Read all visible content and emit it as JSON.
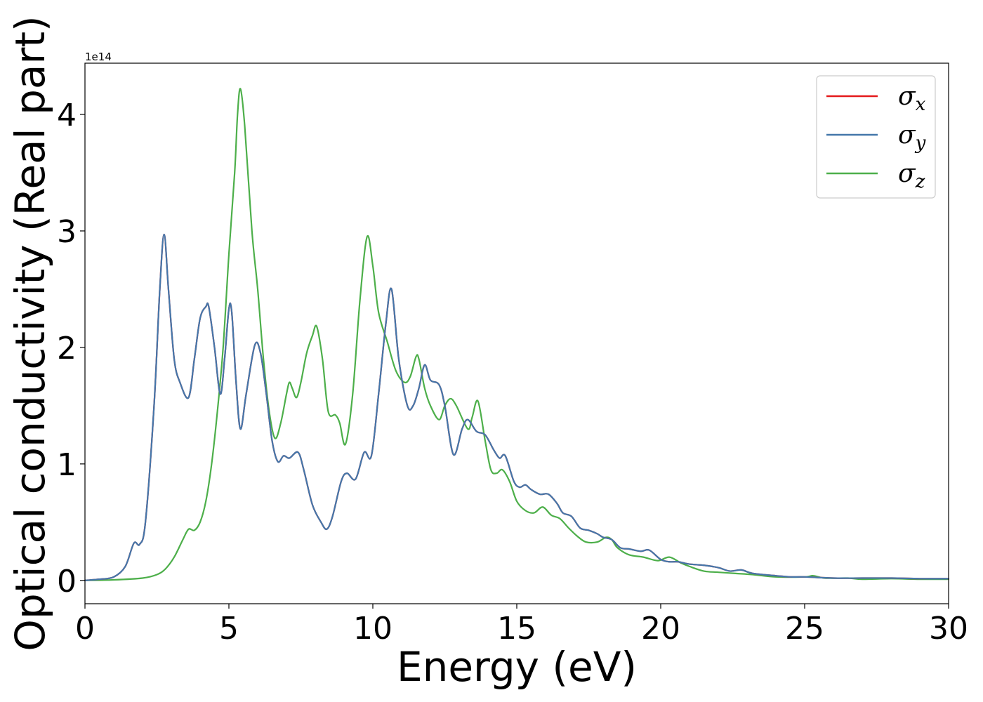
{
  "chart_data": {
    "type": "line",
    "xlabel": "Energy (eV)",
    "ylabel": "Optical conductivity (Real part)",
    "y_offset_label": "1e14",
    "xlim": [
      0,
      30
    ],
    "ylim": [
      -0.2,
      4.44
    ],
    "x_ticks": [
      0,
      5,
      10,
      15,
      20,
      25,
      30
    ],
    "y_ticks": [
      0,
      1,
      2,
      3,
      4
    ],
    "grid": false,
    "legend_position": "top-right",
    "series": [
      {
        "name": "σx",
        "symbol": "σ",
        "subscript": "x",
        "color": "#e41a1c",
        "points": [
          [
            0,
            0
          ],
          [
            0.5,
            0.01
          ],
          [
            1.0,
            0.03
          ],
          [
            1.4,
            0.12
          ],
          [
            1.7,
            0.32
          ],
          [
            1.9,
            0.31
          ],
          [
            2.1,
            0.5
          ],
          [
            2.4,
            1.5
          ],
          [
            2.6,
            2.5
          ],
          [
            2.75,
            2.97
          ],
          [
            2.9,
            2.5
          ],
          [
            3.1,
            1.9
          ],
          [
            3.3,
            1.7
          ],
          [
            3.6,
            1.57
          ],
          [
            3.8,
            1.9
          ],
          [
            4.0,
            2.25
          ],
          [
            4.2,
            2.35
          ],
          [
            4.3,
            2.35
          ],
          [
            4.5,
            2.0
          ],
          [
            4.7,
            1.6
          ],
          [
            4.85,
            1.9
          ],
          [
            5.0,
            2.33
          ],
          [
            5.1,
            2.3
          ],
          [
            5.25,
            1.7
          ],
          [
            5.4,
            1.3
          ],
          [
            5.6,
            1.6
          ],
          [
            5.9,
            2.02
          ],
          [
            6.1,
            1.95
          ],
          [
            6.3,
            1.6
          ],
          [
            6.5,
            1.2
          ],
          [
            6.7,
            1.02
          ],
          [
            6.9,
            1.07
          ],
          [
            7.1,
            1.05
          ],
          [
            7.4,
            1.1
          ],
          [
            7.6,
            0.95
          ],
          [
            7.9,
            0.65
          ],
          [
            8.2,
            0.5
          ],
          [
            8.4,
            0.44
          ],
          [
            8.6,
            0.55
          ],
          [
            8.9,
            0.85
          ],
          [
            9.1,
            0.92
          ],
          [
            9.4,
            0.87
          ],
          [
            9.7,
            1.1
          ],
          [
            9.95,
            1.07
          ],
          [
            10.2,
            1.6
          ],
          [
            10.45,
            2.2
          ],
          [
            10.65,
            2.5
          ],
          [
            10.9,
            1.9
          ],
          [
            11.2,
            1.5
          ],
          [
            11.4,
            1.5
          ],
          [
            11.6,
            1.65
          ],
          [
            11.8,
            1.85
          ],
          [
            12.0,
            1.72
          ],
          [
            12.3,
            1.68
          ],
          [
            12.5,
            1.5
          ],
          [
            12.8,
            1.08
          ],
          [
            13.1,
            1.3
          ],
          [
            13.3,
            1.38
          ],
          [
            13.6,
            1.28
          ],
          [
            13.9,
            1.25
          ],
          [
            14.2,
            1.12
          ],
          [
            14.4,
            1.05
          ],
          [
            14.6,
            1.07
          ],
          [
            14.9,
            0.85
          ],
          [
            15.1,
            0.8
          ],
          [
            15.3,
            0.82
          ],
          [
            15.5,
            0.78
          ],
          [
            15.8,
            0.74
          ],
          [
            16.1,
            0.74
          ],
          [
            16.4,
            0.66
          ],
          [
            16.6,
            0.58
          ],
          [
            16.9,
            0.55
          ],
          [
            17.2,
            0.45
          ],
          [
            17.5,
            0.43
          ],
          [
            17.8,
            0.4
          ],
          [
            18.0,
            0.37
          ],
          [
            18.3,
            0.35
          ],
          [
            18.6,
            0.28
          ],
          [
            18.9,
            0.27
          ],
          [
            19.3,
            0.25
          ],
          [
            19.6,
            0.26
          ],
          [
            20.0,
            0.18
          ],
          [
            20.3,
            0.16
          ],
          [
            20.6,
            0.16
          ],
          [
            21.0,
            0.14
          ],
          [
            21.5,
            0.13
          ],
          [
            22.0,
            0.11
          ],
          [
            22.4,
            0.08
          ],
          [
            22.8,
            0.09
          ],
          [
            23.2,
            0.06
          ],
          [
            24.0,
            0.04
          ],
          [
            24.5,
            0.03
          ],
          [
            25.0,
            0.03
          ],
          [
            26.0,
            0.02
          ],
          [
            27.0,
            0.02
          ],
          [
            28.0,
            0.02
          ],
          [
            29.0,
            0.015
          ],
          [
            30.0,
            0.015
          ]
        ]
      },
      {
        "name": "σy",
        "symbol": "σ",
        "subscript": "y",
        "color": "#4477aa",
        "points": [
          [
            0,
            0
          ],
          [
            0.5,
            0.01
          ],
          [
            1.0,
            0.03
          ],
          [
            1.4,
            0.12
          ],
          [
            1.7,
            0.32
          ],
          [
            1.9,
            0.31
          ],
          [
            2.1,
            0.5
          ],
          [
            2.4,
            1.5
          ],
          [
            2.6,
            2.5
          ],
          [
            2.75,
            2.97
          ],
          [
            2.9,
            2.5
          ],
          [
            3.1,
            1.9
          ],
          [
            3.3,
            1.7
          ],
          [
            3.6,
            1.57
          ],
          [
            3.8,
            1.9
          ],
          [
            4.0,
            2.25
          ],
          [
            4.2,
            2.35
          ],
          [
            4.3,
            2.35
          ],
          [
            4.5,
            2.0
          ],
          [
            4.7,
            1.6
          ],
          [
            4.85,
            1.9
          ],
          [
            5.0,
            2.33
          ],
          [
            5.1,
            2.3
          ],
          [
            5.25,
            1.7
          ],
          [
            5.4,
            1.3
          ],
          [
            5.6,
            1.6
          ],
          [
            5.9,
            2.02
          ],
          [
            6.1,
            1.95
          ],
          [
            6.3,
            1.6
          ],
          [
            6.5,
            1.2
          ],
          [
            6.7,
            1.02
          ],
          [
            6.9,
            1.07
          ],
          [
            7.1,
            1.05
          ],
          [
            7.4,
            1.1
          ],
          [
            7.6,
            0.95
          ],
          [
            7.9,
            0.65
          ],
          [
            8.2,
            0.5
          ],
          [
            8.4,
            0.44
          ],
          [
            8.6,
            0.55
          ],
          [
            8.9,
            0.85
          ],
          [
            9.1,
            0.92
          ],
          [
            9.4,
            0.87
          ],
          [
            9.7,
            1.1
          ],
          [
            9.95,
            1.07
          ],
          [
            10.2,
            1.6
          ],
          [
            10.45,
            2.2
          ],
          [
            10.65,
            2.5
          ],
          [
            10.9,
            1.9
          ],
          [
            11.2,
            1.5
          ],
          [
            11.4,
            1.5
          ],
          [
            11.6,
            1.65
          ],
          [
            11.8,
            1.85
          ],
          [
            12.0,
            1.72
          ],
          [
            12.3,
            1.68
          ],
          [
            12.5,
            1.5
          ],
          [
            12.8,
            1.08
          ],
          [
            13.1,
            1.3
          ],
          [
            13.3,
            1.38
          ],
          [
            13.6,
            1.28
          ],
          [
            13.9,
            1.25
          ],
          [
            14.2,
            1.12
          ],
          [
            14.4,
            1.05
          ],
          [
            14.6,
            1.07
          ],
          [
            14.9,
            0.85
          ],
          [
            15.1,
            0.8
          ],
          [
            15.3,
            0.82
          ],
          [
            15.5,
            0.78
          ],
          [
            15.8,
            0.74
          ],
          [
            16.1,
            0.74
          ],
          [
            16.4,
            0.66
          ],
          [
            16.6,
            0.58
          ],
          [
            16.9,
            0.55
          ],
          [
            17.2,
            0.45
          ],
          [
            17.5,
            0.43
          ],
          [
            17.8,
            0.4
          ],
          [
            18.0,
            0.37
          ],
          [
            18.3,
            0.35
          ],
          [
            18.6,
            0.28
          ],
          [
            18.9,
            0.27
          ],
          [
            19.3,
            0.25
          ],
          [
            19.6,
            0.26
          ],
          [
            20.0,
            0.18
          ],
          [
            20.3,
            0.16
          ],
          [
            20.6,
            0.16
          ],
          [
            21.0,
            0.14
          ],
          [
            21.5,
            0.13
          ],
          [
            22.0,
            0.11
          ],
          [
            22.4,
            0.08
          ],
          [
            22.8,
            0.09
          ],
          [
            23.2,
            0.06
          ],
          [
            24.0,
            0.04
          ],
          [
            24.5,
            0.03
          ],
          [
            25.0,
            0.03
          ],
          [
            26.0,
            0.02
          ],
          [
            27.0,
            0.02
          ],
          [
            28.0,
            0.02
          ],
          [
            29.0,
            0.015
          ],
          [
            30.0,
            0.015
          ]
        ]
      },
      {
        "name": "σz",
        "symbol": "σ",
        "subscript": "z",
        "color": "#4daf4a",
        "points": [
          [
            0,
            0
          ],
          [
            1.0,
            0.005
          ],
          [
            2.0,
            0.02
          ],
          [
            2.5,
            0.05
          ],
          [
            2.8,
            0.1
          ],
          [
            3.1,
            0.2
          ],
          [
            3.4,
            0.35
          ],
          [
            3.6,
            0.44
          ],
          [
            3.8,
            0.43
          ],
          [
            4.0,
            0.5
          ],
          [
            4.2,
            0.68
          ],
          [
            4.4,
            1.0
          ],
          [
            4.6,
            1.45
          ],
          [
            4.8,
            2.0
          ],
          [
            5.0,
            2.8
          ],
          [
            5.2,
            3.5
          ],
          [
            5.3,
            4.0
          ],
          [
            5.4,
            4.22
          ],
          [
            5.55,
            3.9
          ],
          [
            5.8,
            3.0
          ],
          [
            6.0,
            2.5
          ],
          [
            6.2,
            1.9
          ],
          [
            6.4,
            1.45
          ],
          [
            6.6,
            1.22
          ],
          [
            6.8,
            1.35
          ],
          [
            7.0,
            1.6
          ],
          [
            7.1,
            1.7
          ],
          [
            7.2,
            1.65
          ],
          [
            7.35,
            1.57
          ],
          [
            7.5,
            1.7
          ],
          [
            7.7,
            1.95
          ],
          [
            7.9,
            2.1
          ],
          [
            8.05,
            2.18
          ],
          [
            8.25,
            1.9
          ],
          [
            8.45,
            1.45
          ],
          [
            8.7,
            1.42
          ],
          [
            8.85,
            1.35
          ],
          [
            9.05,
            1.17
          ],
          [
            9.3,
            1.6
          ],
          [
            9.55,
            2.4
          ],
          [
            9.8,
            2.95
          ],
          [
            10.0,
            2.7
          ],
          [
            10.2,
            2.3
          ],
          [
            10.5,
            2.05
          ],
          [
            10.8,
            1.8
          ],
          [
            11.1,
            1.7
          ],
          [
            11.3,
            1.75
          ],
          [
            11.5,
            1.92
          ],
          [
            11.6,
            1.9
          ],
          [
            11.8,
            1.65
          ],
          [
            12.0,
            1.5
          ],
          [
            12.3,
            1.38
          ],
          [
            12.5,
            1.5
          ],
          [
            12.7,
            1.56
          ],
          [
            12.9,
            1.5
          ],
          [
            13.3,
            1.3
          ],
          [
            13.45,
            1.4
          ],
          [
            13.65,
            1.54
          ],
          [
            13.9,
            1.2
          ],
          [
            14.1,
            0.95
          ],
          [
            14.3,
            0.92
          ],
          [
            14.5,
            0.95
          ],
          [
            14.75,
            0.85
          ],
          [
            15.0,
            0.68
          ],
          [
            15.3,
            0.6
          ],
          [
            15.6,
            0.58
          ],
          [
            15.9,
            0.63
          ],
          [
            16.2,
            0.56
          ],
          [
            16.5,
            0.53
          ],
          [
            16.8,
            0.45
          ],
          [
            17.1,
            0.38
          ],
          [
            17.4,
            0.33
          ],
          [
            17.8,
            0.33
          ],
          [
            18.1,
            0.37
          ],
          [
            18.3,
            0.35
          ],
          [
            18.5,
            0.28
          ],
          [
            18.9,
            0.22
          ],
          [
            19.4,
            0.2
          ],
          [
            19.9,
            0.17
          ],
          [
            20.3,
            0.2
          ],
          [
            20.7,
            0.15
          ],
          [
            21.0,
            0.12
          ],
          [
            21.5,
            0.08
          ],
          [
            22.0,
            0.07
          ],
          [
            22.6,
            0.06
          ],
          [
            23.2,
            0.05
          ],
          [
            24.0,
            0.03
          ],
          [
            25.0,
            0.03
          ],
          [
            25.3,
            0.04
          ],
          [
            25.7,
            0.02
          ],
          [
            26.5,
            0.02
          ],
          [
            27.0,
            0.01
          ],
          [
            28.0,
            0.015
          ],
          [
            29.0,
            0.01
          ],
          [
            30.0,
            0.01
          ]
        ]
      }
    ]
  }
}
